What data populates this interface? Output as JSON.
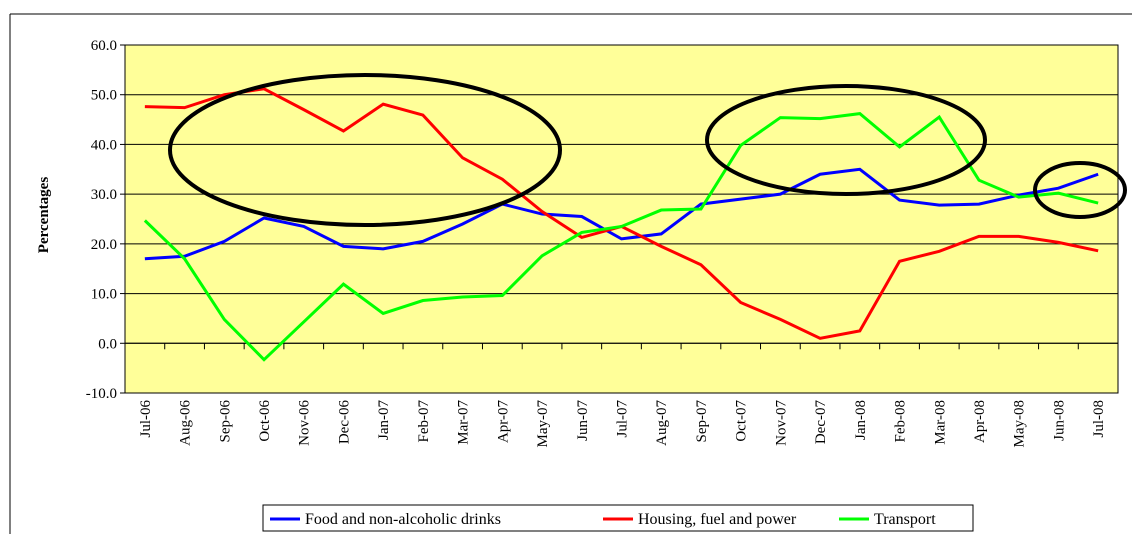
{
  "chart_data": {
    "type": "line",
    "y_label": "Percentages",
    "categories": [
      "Jul-06",
      "Aug-06",
      "Sep-06",
      "Oct-06",
      "Nov-06",
      "Dec-06",
      "Jan-07",
      "Feb-07",
      "Mar-07",
      "Apr-07",
      "May-07",
      "Jun-07",
      "Jul-07",
      "Aug-07",
      "Sep-07",
      "Oct-07",
      "Nov-07",
      "Dec-07",
      "Jan-08",
      "Feb-08",
      "Mar-08",
      "Apr-08",
      "May-08",
      "Jun-08",
      "Jul-08"
    ],
    "series": [
      {
        "name": "Food and non-alcoholic drinks",
        "color": "#0000ff",
        "values": [
          17.0,
          17.5,
          20.5,
          25.2,
          23.5,
          19.5,
          19.0,
          20.5,
          24.0,
          28.0,
          26.0,
          25.5,
          21.0,
          22.0,
          28.0,
          29.0,
          30.0,
          34.0,
          35.0,
          28.8,
          27.8,
          28.0,
          29.8,
          31.2,
          34.0
        ]
      },
      {
        "name": "Housing, fuel and power",
        "color": "#ff0000",
        "values": [
          47.6,
          47.4,
          50.0,
          51.2,
          47.0,
          42.7,
          48.1,
          45.9,
          37.3,
          33.0,
          26.5,
          21.3,
          23.5,
          19.5,
          15.8,
          8.2,
          4.8,
          1.0,
          2.5,
          16.5,
          18.5,
          21.5,
          21.5,
          20.3,
          18.6
        ]
      },
      {
        "name": "Transport",
        "color": "#00ff00",
        "values": [
          24.7,
          17.0,
          4.8,
          -3.3,
          4.3,
          11.9,
          6.0,
          8.6,
          9.3,
          9.6,
          17.6,
          22.3,
          23.5,
          26.8,
          27.0,
          39.8,
          45.4,
          45.2,
          46.2,
          39.5,
          45.5,
          32.8,
          29.4,
          30.2,
          28.2
        ]
      }
    ],
    "ylim": [
      -10,
      60
    ],
    "yticks": [
      {
        "value": -10,
        "label": "-10.0"
      },
      {
        "value": 0,
        "label": "0.0"
      },
      {
        "value": 10,
        "label": "10.0"
      },
      {
        "value": 20,
        "label": "20.0"
      },
      {
        "value": 30,
        "label": "30.0"
      },
      {
        "value": 40,
        "label": "40.0"
      },
      {
        "value": 50,
        "label": "50.0"
      },
      {
        "value": 60,
        "label": "60.0"
      }
    ],
    "grid": true,
    "background": "#ffff99"
  }
}
